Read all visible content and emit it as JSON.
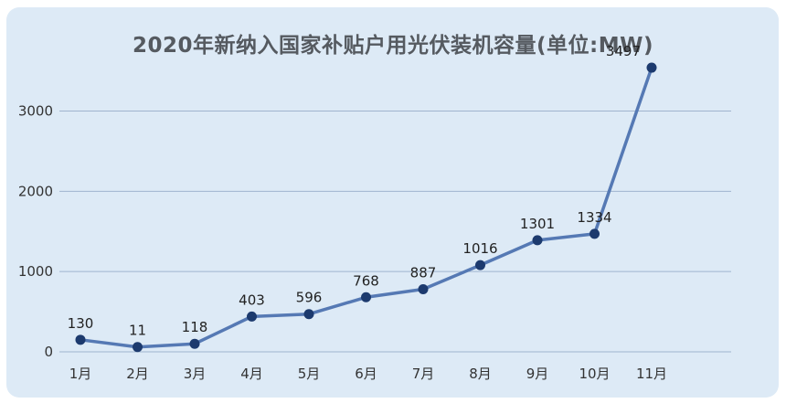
{
  "chart_data": {
    "type": "line",
    "title": "2020年新纳入国家补贴户用光伏装机容量(单位:MW)",
    "xlabel": "",
    "ylabel": "",
    "categories": [
      "1月",
      "2月",
      "3月",
      "4月",
      "5月",
      "6月",
      "7月",
      "8月",
      "9月",
      "10月",
      "11月"
    ],
    "values": [
      130,
      11,
      118,
      403,
      596,
      768,
      887,
      1016,
      1301,
      1334,
      3497
    ],
    "point_levels": [
      150,
      60,
      100,
      440,
      470,
      680,
      780,
      1080,
      1390,
      1470,
      3540
    ],
    "data_labels": [
      "130",
      "11",
      "118",
      "403",
      "596",
      "768",
      "887",
      "1016",
      "1301",
      "1334",
      "3497"
    ],
    "yticks": [
      0,
      1000,
      2000,
      3000
    ],
    "ylim": [
      0,
      3700
    ],
    "grid": true,
    "line_color": "#5579b4",
    "marker_color": "#1c3a6e",
    "gridline_color": "#9fb4cf"
  }
}
